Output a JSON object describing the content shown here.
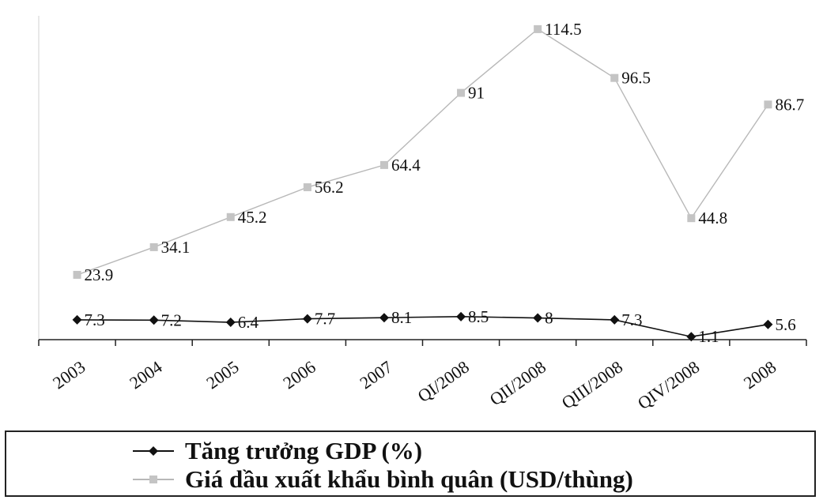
{
  "chart_data": {
    "type": "line",
    "title": "",
    "xlabel": "",
    "ylabel": "",
    "categories": [
      "2003",
      "2004",
      "2005",
      "2006",
      "2007",
      "QI/2008",
      "QII/2008",
      "QIII/2008",
      "QIV/2008",
      "2008"
    ],
    "series": [
      {
        "name": "Tăng trưởng GDP (%)",
        "values": [
          7.3,
          7.2,
          6.4,
          7.7,
          8.1,
          8.5,
          8,
          7.3,
          1.1,
          5.6
        ],
        "labels": [
          "7.3",
          "7.2",
          "6.4",
          "7.7",
          "8.1",
          "8.5",
          "8",
          "7.3",
          "1.1",
          "5.6"
        ],
        "color": "#111111",
        "marker": "diamond"
      },
      {
        "name": "Giá dầu xuất khẩu bình quân (USD/thùng)",
        "values": [
          23.9,
          34.1,
          45.2,
          56.2,
          64.4,
          91,
          114.5,
          96.5,
          44.8,
          86.7
        ],
        "labels": [
          "23.9",
          "34.1",
          "45.2",
          "56.2",
          "64.4",
          "91",
          "114.5",
          "96.5",
          "44.8",
          "86.7"
        ],
        "color": "#b8b8b8",
        "marker": "square"
      }
    ],
    "ylim": [
      0,
      120
    ],
    "grid": false,
    "legend": "bottom"
  }
}
